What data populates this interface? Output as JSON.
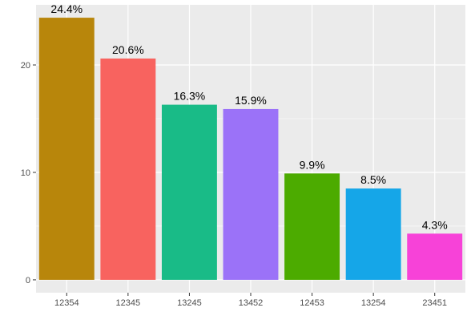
{
  "chart_data": {
    "type": "bar",
    "title": "",
    "xlabel": "",
    "ylabel": "",
    "categories": [
      "12354",
      "12345",
      "13245",
      "13452",
      "12453",
      "13254",
      "23451"
    ],
    "values": [
      24.4,
      20.6,
      16.3,
      15.9,
      9.9,
      8.5,
      4.3
    ],
    "labels": [
      "24.4%",
      "20.6%",
      "16.3%",
      "15.9%",
      "9.9%",
      "8.5%",
      "4.3%"
    ],
    "colors": [
      "#B8860B",
      "#F8635F",
      "#19BB87",
      "#9B72F8",
      "#4CAB00",
      "#15A6E8",
      "#F742D8"
    ],
    "yticks": [
      0,
      10,
      20
    ],
    "ylim": [
      -1.2,
      25.6
    ],
    "grid": true,
    "legend": "none",
    "panel_background": "#EBEBEB",
    "grid_color": "#FFFFFF"
  }
}
